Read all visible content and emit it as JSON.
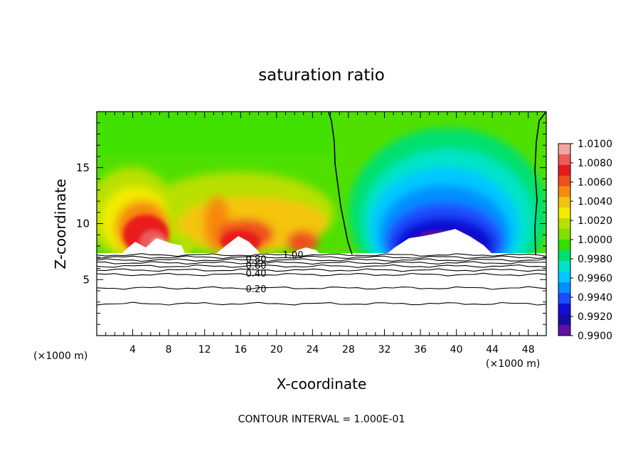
{
  "chart_data": {
    "type": "heatmap",
    "title": "saturation ratio",
    "xlabel": "X-coordinate",
    "ylabel": "Z-coordinate",
    "x_unit_left": "(×1000 m)",
    "x_unit_right": "(×1000 m)",
    "xlim": [
      0,
      50
    ],
    "ylim": [
      0,
      20
    ],
    "x_ticks": [
      "4",
      "8",
      "12",
      "16",
      "20",
      "24",
      "28",
      "32",
      "36",
      "40",
      "44",
      "48"
    ],
    "y_ticks": [
      "5",
      "10",
      "15"
    ],
    "footer": "CONTOUR INTERVAL = 1.000E-01",
    "colorbar": {
      "levels": [
        "1.0100",
        "1.0080",
        "1.0060",
        "1.0040",
        "1.0020",
        "1.0000",
        "0.9980",
        "0.9960",
        "0.9940",
        "0.9920",
        "0.9900"
      ],
      "colors": [
        "#f3a5a5",
        "#ee5a5a",
        "#e81a1a",
        "#f0501e",
        "#f78a10",
        "#f5c410",
        "#f2ec00",
        "#b8e000",
        "#7ee000",
        "#2fe000",
        "#00e070",
        "#00e4c8",
        "#00c8ff",
        "#0090ff",
        "#1a4cff",
        "#1010d8",
        "#1a0aa8",
        "#6010a0"
      ]
    },
    "contour_labels": [
      {
        "text": "1.00",
        "x": 19.5,
        "y": 7.1
      },
      {
        "text": "0.80",
        "x": 14.0,
        "y": 6.8
      },
      {
        "text": "0.60",
        "x": 14.0,
        "y": 6.0
      },
      {
        "text": "0.40",
        "x": 14.0,
        "y": 5.6
      },
      {
        "text": "0.20",
        "x": 14.0,
        "y": 4.1
      }
    ],
    "contour_levels_z": [
      7.2,
      7.0,
      6.75,
      6.5,
      6.2,
      5.85,
      5.45,
      4.25,
      2.85
    ],
    "saturation_one_boundaries_x": [
      26.5,
      48.7
    ],
    "surface_level_z": 7.1
  }
}
